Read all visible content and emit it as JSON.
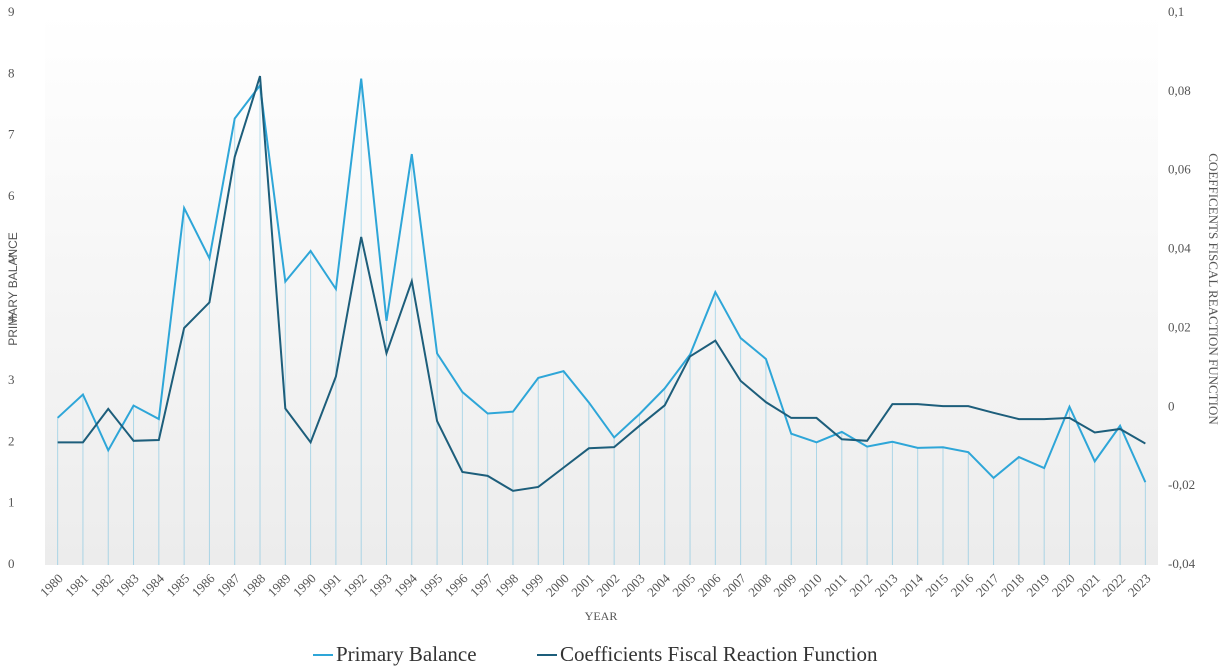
{
  "chart_data": {
    "type": "line",
    "x_label": "YEAR",
    "y_label": "PRIMARY BALANCE",
    "y2_label": "COEFFICENTS FISCAL REACTION FUNCTION",
    "categories": [
      "1980",
      "1981",
      "1982",
      "1983",
      "1984",
      "1985",
      "1986",
      "1987",
      "1988",
      "1989",
      "1990",
      "1991",
      "1992",
      "1993",
      "1994",
      "1995",
      "1996",
      "1997",
      "1998",
      "1999",
      "2000",
      "2001",
      "2002",
      "2003",
      "2004",
      "2005",
      "2006",
      "2007",
      "2008",
      "2009",
      "2010",
      "2011",
      "2012",
      "2013",
      "2014",
      "2015",
      "2016",
      "2017",
      "2018",
      "2019",
      "2020",
      "2021",
      "2022",
      "2023"
    ],
    "series": [
      {
        "name": "Primary Balance",
        "color": "#2ea6d8",
        "axis": "y",
        "values": [
          2.4,
          2.78,
          1.87,
          2.6,
          2.38,
          5.82,
          5.0,
          7.28,
          7.82,
          4.62,
          5.12,
          4.5,
          7.93,
          3.98,
          6.7,
          3.45,
          2.82,
          2.47,
          2.5,
          3.05,
          3.16,
          2.65,
          2.08,
          2.46,
          2.88,
          3.43,
          4.45,
          3.7,
          3.36,
          2.14,
          2.0,
          2.17,
          1.93,
          2.01,
          1.91,
          1.92,
          1.84,
          1.42,
          1.76,
          1.58,
          2.58,
          1.69,
          2.27,
          1.35
        ]
      },
      {
        "name": "Coefficients Fiscal Reaction Function",
        "color": "#1d5e7b",
        "axis": "y2",
        "values": [
          -0.0089,
          -0.0089,
          -0.0004,
          -0.0085,
          -0.0083,
          0.0201,
          0.0266,
          0.0635,
          0.084,
          -0.0003,
          -0.0089,
          0.0078,
          0.0432,
          0.0137,
          0.032,
          -0.0035,
          -0.0164,
          -0.0174,
          -0.0212,
          -0.0202,
          -0.0153,
          -0.0104,
          -0.0101,
          -0.0047,
          0.0005,
          0.0129,
          0.0169,
          0.0067,
          0.0013,
          -0.0027,
          -0.0027,
          -0.0081,
          -0.0085,
          0.0008,
          0.0008,
          0.0003,
          0.0003,
          -0.0014,
          -0.003,
          -0.003,
          -0.0027,
          -0.0064,
          -0.0055,
          -0.0092
        ]
      }
    ],
    "ylim": [
      0,
      9
    ],
    "yticks": [
      0,
      1,
      2,
      3,
      4,
      5,
      6,
      7,
      8,
      9
    ],
    "y2lim": [
      -0.04,
      0.1
    ],
    "y2ticks": [
      {
        "value": -0.04,
        "label": "-0,04"
      },
      {
        "value": -0.02,
        "label": "-0,02"
      },
      0,
      {
        "value": 0.02,
        "label": "0,02"
      },
      {
        "value": 0.04,
        "label": "0,04"
      },
      {
        "value": 0.06,
        "label": "0,06"
      },
      {
        "value": 0.08,
        "label": "0,08"
      },
      {
        "value": 0.1,
        "label": "0,1"
      }
    ],
    "drop_lines": true,
    "legend": "bottom"
  }
}
